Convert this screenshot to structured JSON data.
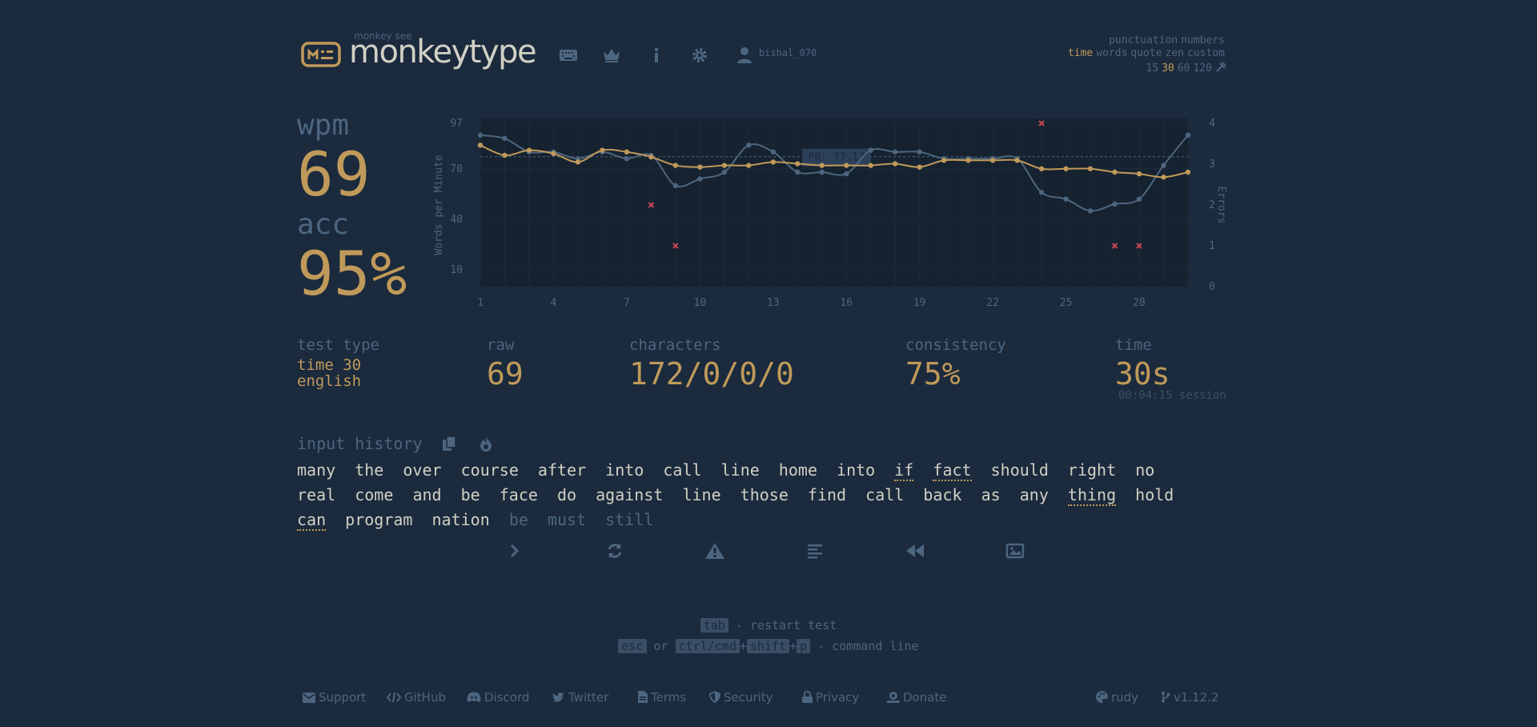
{
  "header": {
    "logo_small": "monkey see",
    "logo_text": "monkeytype",
    "nav": [
      {
        "icon": "keyboard-icon"
      },
      {
        "icon": "crown-icon"
      },
      {
        "icon": "info-icon"
      },
      {
        "icon": "gear-icon"
      },
      {
        "icon": "user-icon"
      }
    ],
    "username": "bishal_070",
    "config": {
      "row1": [
        "punctuation",
        "numbers"
      ],
      "row2": [
        "time",
        "words",
        "quote",
        "zen",
        "custom"
      ],
      "row3": [
        "15",
        "30",
        "60",
        "120"
      ],
      "active_mode": "time",
      "active_time": "30",
      "tools_icon": "wrench-icon"
    }
  },
  "result": {
    "wpm_label": "wpm",
    "wpm": "69",
    "acc_label": "acc",
    "acc": "95%",
    "test_type_label": "test type",
    "test_type_line1": "time 30",
    "test_type_line2": "english",
    "raw_label": "raw",
    "raw": "69",
    "characters_label": "characters",
    "characters": "172/0/0/0",
    "consistency_label": "consistency",
    "consistency": "75%",
    "time_label": "time",
    "time": "30s",
    "session": "00:04:15 session"
  },
  "chart_data": {
    "type": "line",
    "ylabel": "Words per Minute",
    "y2label": "Errors",
    "y_ticks": [
      10,
      40,
      70,
      97
    ],
    "ylim": [
      0,
      97
    ],
    "y2_ticks": [
      0,
      1,
      2,
      3,
      4
    ],
    "y2lim": [
      0,
      4
    ],
    "x_ticks": [
      1,
      4,
      7,
      10,
      13,
      16,
      19,
      22,
      25,
      28
    ],
    "x": [
      1,
      2,
      3,
      4,
      5,
      6,
      7,
      8,
      9,
      10,
      11,
      12,
      13,
      14,
      15,
      16,
      17,
      18,
      19,
      20,
      21,
      22,
      23,
      24,
      25,
      26,
      27,
      28,
      29,
      30
    ],
    "pb_label": "PB: 77.17",
    "pb": 77.17,
    "series": [
      {
        "name": "raw",
        "color": "#4d6680",
        "values": [
          90,
          88,
          80,
          80,
          76,
          80,
          76,
          78,
          60,
          64,
          68,
          84,
          80,
          68,
          68,
          67,
          81,
          80,
          80,
          76,
          76,
          76,
          76,
          56,
          52,
          45,
          49,
          52,
          72,
          90
        ]
      },
      {
        "name": "wpm",
        "color": "#c09a5a",
        "values": [
          84,
          78,
          81,
          79,
          74,
          81,
          80,
          77,
          72,
          71,
          72,
          72,
          74,
          73,
          72,
          72,
          72,
          73,
          71,
          75,
          75,
          75,
          75,
          70,
          70,
          70,
          68,
          67,
          65,
          68
        ]
      },
      {
        "name": "errors",
        "color": "#ca4754",
        "type": "scatter",
        "points": [
          [
            8,
            2
          ],
          [
            9,
            1
          ],
          [
            24,
            4
          ],
          [
            27,
            1
          ],
          [
            28,
            1
          ]
        ]
      }
    ]
  },
  "history": {
    "title": "input history",
    "copy_icon": "copy-icon",
    "heatmap_icon": "fire-icon",
    "words": [
      {
        "t": "many"
      },
      {
        "t": "the"
      },
      {
        "t": "over"
      },
      {
        "t": "course"
      },
      {
        "t": "after"
      },
      {
        "t": "into"
      },
      {
        "t": "call"
      },
      {
        "t": "line"
      },
      {
        "t": "home"
      },
      {
        "t": "into"
      },
      {
        "t": "if",
        "err": true
      },
      {
        "t": "fact",
        "err": true
      },
      {
        "t": "should"
      },
      {
        "t": "right"
      },
      {
        "t": "no"
      },
      {
        "t": "real"
      },
      {
        "t": "come"
      },
      {
        "t": "and"
      },
      {
        "t": "be"
      },
      {
        "t": "face"
      },
      {
        "t": "do"
      },
      {
        "t": "against"
      },
      {
        "t": "line"
      },
      {
        "t": "those"
      },
      {
        "t": "find"
      },
      {
        "t": "call"
      },
      {
        "t": "back"
      },
      {
        "t": "as"
      },
      {
        "t": "any"
      },
      {
        "t": "thing",
        "err": true
      },
      {
        "t": "hold"
      },
      {
        "t": "can",
        "err": true
      },
      {
        "t": "program"
      },
      {
        "t": "nation"
      },
      {
        "t": "be",
        "untyped": true
      },
      {
        "t": "must",
        "untyped": true
      },
      {
        "t": "still",
        "untyped": true
      }
    ]
  },
  "controls": [
    {
      "name": "next-test-button",
      "icon": "chevron-right-icon"
    },
    {
      "name": "restart-button",
      "icon": "refresh-icon"
    },
    {
      "name": "practice-missed-button",
      "icon": "warning-icon"
    },
    {
      "name": "toggle-words-history-button",
      "icon": "align-left-icon"
    },
    {
      "name": "watch-replay-button",
      "icon": "backward-icon"
    },
    {
      "name": "screenshot-button",
      "icon": "image-icon"
    }
  ],
  "hints": {
    "tab_key": "tab",
    "restart_text": "- restart test",
    "esc_key": "esc",
    "or": "or",
    "ctrl_key": "ctrl/cmd",
    "plus1": "+",
    "shift_key": "shift",
    "plus2": "+",
    "p_key": "p",
    "command_text": "- command line"
  },
  "footer": {
    "links": [
      {
        "label": "Support",
        "icon": "mail-icon"
      },
      {
        "label": "GitHub",
        "icon": "code-icon"
      },
      {
        "label": "Discord",
        "icon": "discord-icon"
      },
      {
        "label": "Twitter",
        "icon": "twitter-icon"
      },
      {
        "label": "Terms",
        "icon": "document-icon"
      },
      {
        "label": "Security",
        "icon": "shield-icon"
      },
      {
        "label": "Privacy",
        "icon": "lock-icon"
      },
      {
        "label": "Donate",
        "icon": "donate-icon"
      }
    ],
    "theme": "rudy",
    "theme_icon": "palette-icon",
    "version": "v1.12.2",
    "version_icon": "branch-icon"
  },
  "colors": {
    "bg": "#1b2a3d",
    "main": "#c09a5a",
    "sub": "#4d6680",
    "text": "#d1d0c5",
    "error": "#ca4754"
  }
}
